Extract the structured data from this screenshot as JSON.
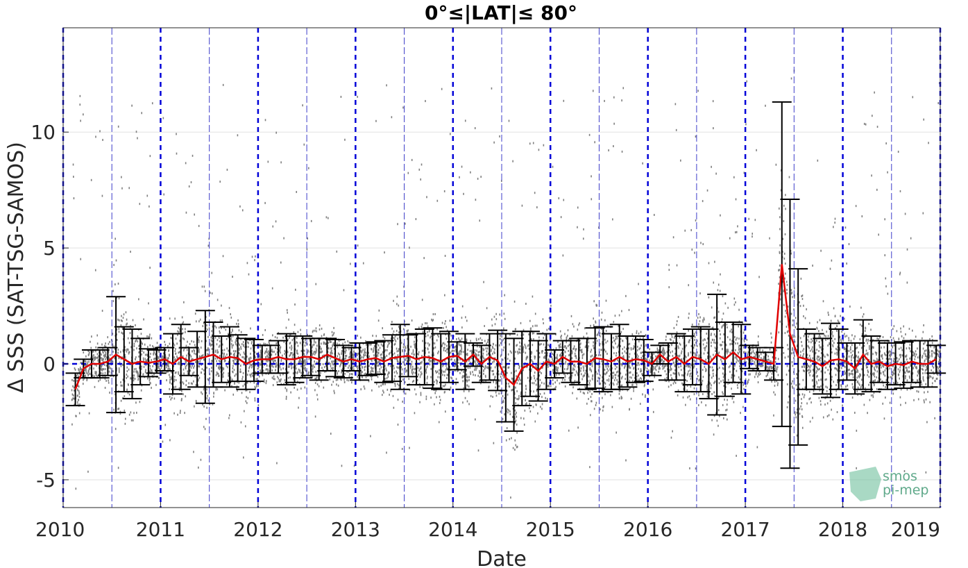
{
  "chart_data": {
    "type": "scatter",
    "title": "0°≤|LAT|≤ 80°",
    "xlabel": "Date",
    "ylabel": "Δ SSS (SAT-TSG-SAMOS)",
    "xlim": [
      "2010-01-01",
      "2019-01-01"
    ],
    "ylim": [
      -6.2,
      14.5
    ],
    "x_ticks": [
      "2010",
      "2011",
      "2012",
      "2013",
      "2014",
      "2015",
      "2016",
      "2017",
      "2018",
      "2019"
    ],
    "y_ticks": [
      -5,
      0,
      5,
      10
    ],
    "grid": true,
    "reference_line": 0,
    "colors": {
      "scatter": "#7f7f7f",
      "mean_line": "#e00000",
      "error_bars": "#000000",
      "year_lines": "#0000d8",
      "midyear_lines": "#3c3cc8",
      "grid": "#e2e2e2"
    },
    "series": [
      {
        "style": "mean_with_std_error_bars",
        "x": [
          "2010-02",
          "2010-03",
          "2010-04",
          "2010-05",
          "2010-06",
          "2010-07",
          "2010-08",
          "2010-09",
          "2010-10",
          "2010-11",
          "2010-12",
          "2011-01",
          "2011-02",
          "2011-03",
          "2011-04",
          "2011-05",
          "2011-06",
          "2011-07",
          "2011-08",
          "2011-09",
          "2011-10",
          "2011-11",
          "2011-12",
          "2012-01",
          "2012-02",
          "2012-03",
          "2012-04",
          "2012-05",
          "2012-06",
          "2012-07",
          "2012-08",
          "2012-09",
          "2012-10",
          "2012-11",
          "2012-12",
          "2013-01",
          "2013-02",
          "2013-03",
          "2013-04",
          "2013-05",
          "2013-06",
          "2013-07",
          "2013-08",
          "2013-09",
          "2013-10",
          "2013-11",
          "2013-12",
          "2014-01",
          "2014-02",
          "2014-03",
          "2014-04",
          "2014-05",
          "2014-06",
          "2014-07",
          "2014-08",
          "2014-09",
          "2014-10",
          "2014-11",
          "2014-12",
          "2015-01",
          "2015-02",
          "2015-03",
          "2015-04",
          "2015-05",
          "2015-06",
          "2015-07",
          "2015-08",
          "2015-09",
          "2015-10",
          "2015-11",
          "2015-12",
          "2016-01",
          "2016-02",
          "2016-03",
          "2016-04",
          "2016-05",
          "2016-06",
          "2016-07",
          "2016-08",
          "2016-09",
          "2016-10",
          "2016-11",
          "2016-12",
          "2017-01",
          "2017-02",
          "2017-03",
          "2017-04",
          "2017-05",
          "2017-06",
          "2017-07",
          "2017-08",
          "2017-09",
          "2017-10",
          "2017-11",
          "2017-12",
          "2018-01",
          "2018-02",
          "2018-03",
          "2018-04",
          "2018-05",
          "2018-06",
          "2018-07",
          "2018-08",
          "2018-09",
          "2018-10",
          "2018-11",
          "2018-12"
        ],
        "mean": [
          -1.1,
          -0.2,
          0.0,
          0.0,
          0.1,
          0.4,
          0.2,
          0.0,
          0.1,
          0.05,
          0.1,
          0.2,
          0.0,
          0.3,
          0.1,
          0.2,
          0.3,
          0.4,
          0.2,
          0.3,
          0.25,
          0.0,
          0.15,
          0.2,
          0.2,
          0.3,
          0.2,
          0.2,
          0.3,
          0.3,
          0.2,
          0.4,
          0.25,
          0.1,
          0.2,
          0.1,
          0.2,
          0.25,
          0.1,
          0.25,
          0.3,
          0.35,
          0.2,
          0.3,
          0.25,
          0.1,
          0.3,
          0.35,
          0.1,
          0.4,
          0.0,
          0.3,
          0.15,
          -0.6,
          -0.9,
          -0.2,
          0.0,
          -0.3,
          0.1,
          0.0,
          0.3,
          0.1,
          0.1,
          0.0,
          0.25,
          0.2,
          0.1,
          0.3,
          0.1,
          0.2,
          0.15,
          0.0,
          0.4,
          0.1,
          0.3,
          0.0,
          0.3,
          0.2,
          0.0,
          0.4,
          0.2,
          0.5,
          0.2,
          0.3,
          0.2,
          0.1,
          0.0,
          4.3,
          1.3,
          0.3,
          0.2,
          0.1,
          -0.1,
          0.15,
          0.2,
          0.1,
          -0.2,
          0.4,
          0.0,
          0.1,
          -0.1,
          0.0,
          -0.05,
          0.1,
          0.0,
          0.0,
          0.2
        ],
        "std": [
          0.7,
          0.4,
          0.6,
          0.6,
          0.6,
          2.5,
          1.4,
          1.5,
          1.0,
          0.6,
          0.5,
          0.5,
          1.3,
          1.4,
          0.6,
          1.2,
          2.0,
          1.4,
          1.0,
          1.3,
          1.0,
          1.1,
          0.9,
          0.6,
          0.6,
          0.7,
          1.1,
          1.0,
          0.9,
          0.8,
          0.9,
          0.7,
          0.8,
          0.7,
          0.5,
          0.8,
          0.7,
          0.7,
          0.9,
          1.0,
          1.4,
          0.9,
          1.1,
          1.2,
          1.3,
          1.2,
          1.1,
          0.6,
          1.2,
          0.5,
          0.8,
          1.0,
          1.3,
          1.9,
          2.0,
          1.6,
          1.4,
          1.3,
          1.2,
          0.6,
          0.7,
          0.9,
          1.0,
          1.1,
          1.3,
          1.4,
          1.2,
          1.4,
          1.1,
          1.0,
          0.9,
          0.5,
          0.4,
          0.8,
          1.0,
          1.2,
          1.2,
          1.4,
          1.5,
          2.6,
          1.6,
          1.3,
          1.5,
          0.5,
          0.5,
          0.4,
          0.7,
          7.0,
          5.8,
          3.8,
          1.3,
          1.2,
          1.2,
          1.6,
          1.3,
          0.8,
          1.1,
          1.5,
          1.2,
          0.9,
          1.0,
          0.9,
          1.0,
          0.9,
          1.0,
          1.0,
          0.6
        ]
      }
    ],
    "annotations": [
      "smos",
      "pi-mep"
    ]
  }
}
